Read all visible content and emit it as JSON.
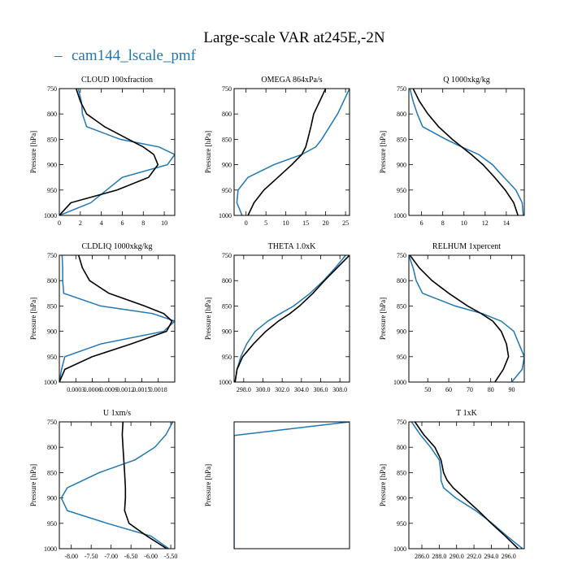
{
  "figure": {
    "title": "Large-scale VAR at245E,-2N",
    "legend": {
      "label": "cam144_lscale_pmf",
      "dash": "–"
    }
  },
  "colors": {
    "model": "#1f77b4",
    "obs": "#000000"
  },
  "chart_data": [
    {
      "type": "line",
      "title": "CLOUD 100xfraction",
      "ylabel": "Pressure [hPa]",
      "ylim": [
        1000,
        750
      ],
      "xlim": [
        0,
        11
      ],
      "xticks": [
        0,
        2,
        4,
        6,
        8,
        10
      ],
      "xtick_labels": [
        "0",
        "2",
        "4",
        "6",
        "8",
        "10"
      ],
      "yticks": [
        750,
        800,
        850,
        900,
        950,
        1000
      ],
      "y": [
        750,
        775,
        800,
        825,
        850,
        865,
        880,
        900,
        925,
        950,
        975,
        1000
      ],
      "series": [
        {
          "role": "obs",
          "values": [
            1.6,
            2.0,
            2.6,
            4.3,
            6.6,
            8.0,
            9.0,
            9.4,
            8.5,
            5.5,
            1.1,
            0.0
          ]
        },
        {
          "role": "model",
          "values": [
            1.8,
            2.1,
            2.2,
            2.6,
            5.8,
            9.5,
            11.0,
            10.3,
            6.0,
            4.5,
            3.0,
            0.0
          ]
        }
      ]
    },
    {
      "type": "line",
      "title": "OMEGA 864xPa/s",
      "ylabel": "Pressure [hPa]",
      "ylim": [
        1000,
        750
      ],
      "xlim": [
        -3,
        26
      ],
      "xticks": [
        0,
        5,
        10,
        15,
        20,
        25
      ],
      "xtick_labels": [
        "0",
        "5",
        "10",
        "15",
        "20",
        "25"
      ],
      "yticks": [
        750,
        800,
        850,
        900,
        950,
        1000
      ],
      "y": [
        750,
        775,
        800,
        825,
        850,
        865,
        880,
        900,
        925,
        950,
        975,
        1000
      ],
      "series": [
        {
          "role": "obs",
          "values": [
            20.0,
            18.5,
            17.0,
            16.3,
            15.5,
            15.0,
            14.0,
            11.5,
            8.0,
            4.5,
            2.0,
            0.5
          ]
        },
        {
          "role": "model",
          "values": [
            26.0,
            24.5,
            23.0,
            21.0,
            19.0,
            17.5,
            14.0,
            7.0,
            0.5,
            -2.0,
            -2.3,
            -1.0
          ]
        }
      ]
    },
    {
      "type": "line",
      "title": "Q 1000xkg/kg",
      "ylabel": "Pressure [hPa]",
      "ylim": [
        1000,
        750
      ],
      "xlim": [
        4.8,
        15.7
      ],
      "xticks": [
        6,
        8,
        10,
        12,
        14
      ],
      "xtick_labels": [
        "6",
        "8",
        "10",
        "12",
        "14"
      ],
      "yticks": [
        750,
        800,
        850,
        900,
        950,
        1000
      ],
      "y": [
        750,
        775,
        800,
        825,
        850,
        865,
        880,
        900,
        925,
        950,
        975,
        1000
      ],
      "series": [
        {
          "role": "obs",
          "values": [
            5.2,
            5.8,
            6.6,
            7.6,
            8.9,
            9.8,
            10.7,
            11.8,
            12.9,
            13.9,
            14.7,
            15.1
          ]
        },
        {
          "role": "model",
          "values": [
            4.9,
            5.2,
            5.6,
            6.1,
            8.3,
            9.8,
            11.4,
            12.7,
            13.8,
            14.9,
            15.5,
            15.6
          ]
        }
      ]
    },
    {
      "type": "line",
      "title": "CLDLIQ 1000xkg/kg",
      "ylabel": "Pressure [hPa]",
      "ylim": [
        1000,
        750
      ],
      "xlim": [
        0,
        0.0021
      ],
      "xticks": [
        0.0003,
        0.0006,
        0.0009,
        0.0012,
        0.0015,
        0.0018
      ],
      "xtick_labels": [
        "0.0003",
        "0.0006",
        "0.0009",
        "0.0012",
        "0.0015",
        "0.0018"
      ],
      "yticks": [
        750,
        800,
        850,
        900,
        950,
        1000
      ],
      "y": [
        750,
        775,
        800,
        825,
        850,
        865,
        880,
        900,
        925,
        950,
        975,
        1000
      ],
      "series": [
        {
          "role": "obs",
          "values": [
            0.00035,
            0.00042,
            0.00055,
            0.0009,
            0.00155,
            0.0019,
            0.00205,
            0.00195,
            0.0013,
            0.0006,
            0.0001,
            0.0
          ]
        },
        {
          "role": "model",
          "values": [
            5e-05,
            6e-05,
            6e-05,
            8e-05,
            0.00075,
            0.0017,
            0.0021,
            0.0019,
            0.00075,
            0.0001,
            4e-05,
            0.0
          ]
        }
      ]
    },
    {
      "type": "line",
      "title": "THETA 1.0xK",
      "ylabel": "Pressure [hPa]",
      "ylim": [
        1000,
        750
      ],
      "xlim": [
        297,
        309
      ],
      "xticks": [
        298.0,
        300.0,
        302.0,
        304.0,
        306.0,
        308.0
      ],
      "xtick_labels": [
        "298.0",
        "300.0",
        "302.0",
        "304.0",
        "306.0",
        "308.0"
      ],
      "yticks": [
        750,
        800,
        850,
        900,
        950,
        1000
      ],
      "y": [
        750,
        775,
        800,
        825,
        850,
        865,
        880,
        900,
        925,
        950,
        975,
        1000
      ],
      "series": [
        {
          "role": "obs",
          "values": [
            309.0,
            307.7,
            306.4,
            305.2,
            303.8,
            302.8,
            301.6,
            300.3,
            299.0,
            297.9,
            297.3,
            297.1
          ]
        },
        {
          "role": "model",
          "values": [
            308.6,
            307.5,
            306.3,
            304.9,
            303.2,
            301.8,
            300.5,
            299.2,
            298.3,
            297.7,
            297.3,
            297.1
          ]
        }
      ]
    },
    {
      "type": "line",
      "title": "RELHUM 1xpercent",
      "ylabel": "Pressure [hPa]",
      "ylim": [
        1000,
        750
      ],
      "xlim": [
        41,
        96
      ],
      "xticks": [
        50,
        60,
        70,
        80,
        90
      ],
      "xtick_labels": [
        "50",
        "60",
        "70",
        "80",
        "90"
      ],
      "yticks": [
        750,
        800,
        850,
        900,
        950,
        1000
      ],
      "y": [
        750,
        775,
        800,
        825,
        850,
        865,
        880,
        900,
        925,
        950,
        975,
        1000
      ],
      "series": [
        {
          "role": "obs",
          "values": [
            41.5,
            46.0,
            52.0,
            60.0,
            69.0,
            75.5,
            81.0,
            85.0,
            87.5,
            88.5,
            86.0,
            82.0
          ]
        },
        {
          "role": "model",
          "values": [
            41.0,
            43.0,
            44.5,
            47.5,
            63.0,
            76.0,
            85.0,
            91.0,
            93.5,
            96.0,
            95.0,
            90.0
          ]
        }
      ]
    },
    {
      "type": "line",
      "title": "U 1xm/s",
      "ylabel": "Pressure [hPa]",
      "ylim": [
        1000,
        750
      ],
      "xlim": [
        -8.3,
        -5.4
      ],
      "xticks": [
        -8.0,
        -7.5,
        -7.0,
        -6.5,
        -6.0,
        -5.5
      ],
      "xtick_labels": [
        "-8.00",
        "-7.50",
        "-7.00",
        "-6.50",
        "-6.00",
        "-5.50"
      ],
      "yticks": [
        750,
        800,
        850,
        900,
        950,
        1000
      ],
      "y": [
        750,
        775,
        800,
        825,
        850,
        865,
        880,
        900,
        925,
        950,
        975,
        1000
      ],
      "series": [
        {
          "role": "obs",
          "values": [
            -6.7,
            -6.72,
            -6.7,
            -6.68,
            -6.66,
            -6.65,
            -6.64,
            -6.64,
            -6.66,
            -6.55,
            -6.1,
            -5.6
          ]
        },
        {
          "role": "model",
          "values": [
            -5.45,
            -5.62,
            -5.9,
            -6.4,
            -7.3,
            -7.7,
            -8.1,
            -8.25,
            -8.1,
            -7.1,
            -6.0,
            -5.55
          ]
        }
      ]
    },
    {
      "type": "line",
      "title": "",
      "ylabel": "Pressure [hPa]",
      "ylim": [
        1000,
        750
      ],
      "xlim": [
        0,
        1
      ],
      "xticks": [],
      "xtick_labels": [],
      "yticks": [],
      "y": [
        750,
        777,
        1000
      ],
      "series": [
        {
          "role": "model",
          "values": [
            1.0,
            0.0,
            0.0
          ]
        }
      ]
    },
    {
      "type": "line",
      "title": "T 1xK",
      "ylabel": "Pressure [hPa]",
      "ylim": [
        1000,
        750
      ],
      "xlim": [
        284.5,
        297.8
      ],
      "xticks": [
        286.0,
        288.0,
        290.0,
        292.0,
        294.0,
        296.0
      ],
      "xtick_labels": [
        "286.0",
        "288.0",
        "290.0",
        "292.0",
        "294.0",
        "296.0"
      ],
      "yticks": [
        750,
        800,
        850,
        900,
        950,
        1000
      ],
      "y": [
        750,
        775,
        800,
        825,
        850,
        865,
        880,
        900,
        925,
        950,
        975,
        1000
      ],
      "series": [
        {
          "role": "obs",
          "values": [
            285.2,
            286.2,
            287.5,
            288.2,
            288.5,
            288.9,
            289.6,
            290.9,
            292.5,
            294.0,
            295.6,
            297.1
          ]
        },
        {
          "role": "model",
          "values": [
            284.8,
            285.8,
            287.0,
            288.0,
            288.2,
            288.2,
            288.5,
            289.9,
            292.2,
            294.1,
            295.8,
            297.6
          ]
        }
      ]
    }
  ]
}
